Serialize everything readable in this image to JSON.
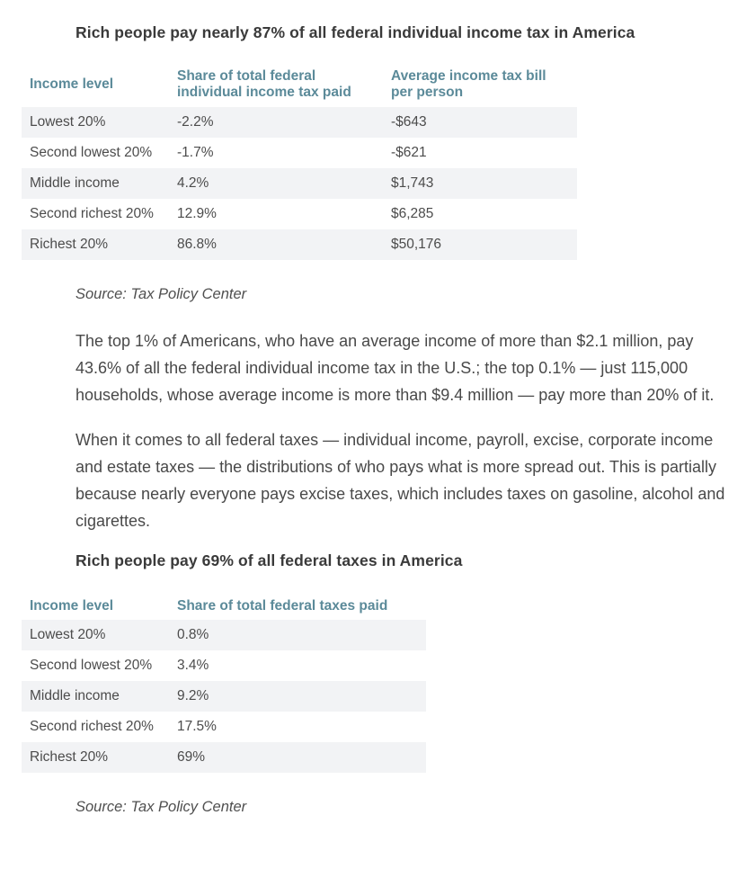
{
  "article": {
    "heading1": "Rich people pay nearly 87% of all federal individual income tax in America",
    "table1": {
      "headers": [
        "Income level",
        "Share of total federal individual income tax paid",
        "Average income tax bill per person"
      ],
      "rows": [
        [
          "Lowest 20%",
          "-2.2%",
          "-$643"
        ],
        [
          "Second lowest 20%",
          "-1.7%",
          "-$621"
        ],
        [
          "Middle income",
          "4.2%",
          "$1,743"
        ],
        [
          "Second richest 20%",
          "12.9%",
          "$6,285"
        ],
        [
          "Richest 20%",
          "86.8%",
          "$50,176"
        ]
      ]
    },
    "source1": "Source: Tax Policy Center",
    "paragraph1": "The top 1% of Americans, who have an average income of more than $2.1 million, pay 43.6% of all the federal individual income tax in the U.S.; the top 0.1% — just 115,000 households, whose average income is more than $9.4 million — pay more than 20% of it.",
    "paragraph2": "When it comes to all federal taxes — individual income, payroll, excise, corporate income and estate taxes — the distributions of who pays what is more spread out. This is partially because nearly everyone pays excise taxes, which includes taxes on gasoline, alcohol and cigarettes.",
    "heading2": "Rich people pay 69% of all federal taxes in America",
    "table2": {
      "headers": [
        "Income level",
        "Share of total federal taxes paid"
      ],
      "rows": [
        [
          "Lowest 20%",
          "0.8%"
        ],
        [
          "Second lowest 20%",
          "3.4%"
        ],
        [
          "Middle income",
          "9.2%"
        ],
        [
          "Second richest 20%",
          "17.5%"
        ],
        [
          "Richest 20%",
          "69%"
        ]
      ]
    },
    "source2": "Source: Tax Policy Center"
  },
  "colors": {
    "column_header_teal": "#5b8a99",
    "row_stripe_gray": "#f2f3f5",
    "body_text": "#494949",
    "heading_text": "#3a3a3a",
    "background": "#ffffff"
  }
}
